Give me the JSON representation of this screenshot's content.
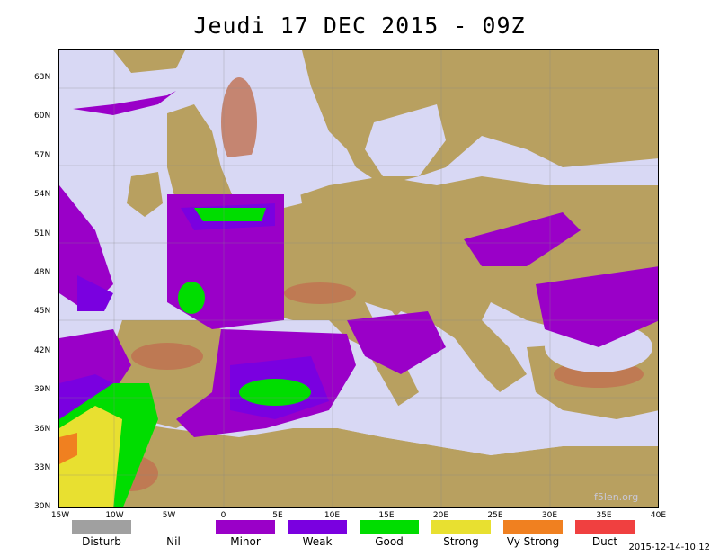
{
  "title": "Jeudi 17 DEC 2015 - 09Z",
  "watermark": "f5len.org",
  "timestamp": "2015-12-14-10:12",
  "lat_labels": [
    "63N",
    "60N",
    "57N",
    "54N",
    "51N",
    "48N",
    "45N",
    "42N",
    "39N",
    "36N",
    "33N",
    "30N"
  ],
  "lon_labels": [
    "15W",
    "10W",
    "5W",
    "0",
    "5E",
    "10E",
    "15E",
    "20E",
    "25E",
    "30E",
    "35E",
    "40E"
  ],
  "legend": [
    {
      "label": "Disturb",
      "color": "#a0a0a0"
    },
    {
      "label": "Nil",
      "color": ""
    },
    {
      "label": "Minor",
      "color": "#9a00c8"
    },
    {
      "label": "Weak",
      "color": "#7a00e0"
    },
    {
      "label": "Good",
      "color": "#00dd00"
    },
    {
      "label": "Strong",
      "color": "#e8e030"
    },
    {
      "label": "Vy Strong",
      "color": "#f08020"
    },
    {
      "label": "Duct",
      "color": "#f04040"
    }
  ],
  "colors": {
    "sea": "#d8d8f4",
    "land": "#b8a060",
    "mountain": "#c07050"
  }
}
